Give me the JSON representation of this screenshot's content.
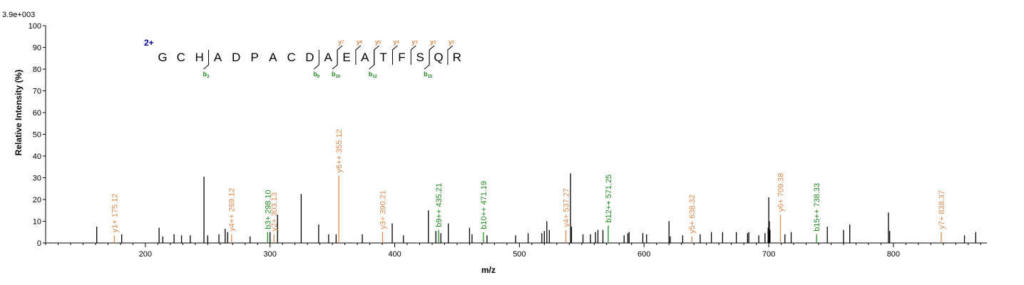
{
  "chart_data": {
    "type": "bar",
    "max_intensity_label": "3.9e+003",
    "ylabel": "Relative   Intensity (%)",
    "xlabel": "m/z",
    "xlim": [
      120,
      875
    ],
    "ylim": [
      0,
      100
    ],
    "x_ticks": [
      200,
      300,
      400,
      500,
      600,
      700,
      800
    ],
    "y_ticks": [
      0,
      10,
      20,
      30,
      40,
      50,
      60,
      70,
      80,
      90,
      100
    ],
    "colors": {
      "unmatched": "#000000",
      "y_ion": "#e08a50",
      "b_ion": "#228b22",
      "charge": "#00008b"
    },
    "peaks": [
      {
        "mz": 161.0,
        "intensity": 7.5,
        "type": "unmatched"
      },
      {
        "mz": 175.12,
        "intensity": 3.5,
        "type": "y",
        "label": "y1+ 175.12"
      },
      {
        "mz": 181.0,
        "intensity": 4.0,
        "type": "unmatched"
      },
      {
        "mz": 211.0,
        "intensity": 7.0,
        "type": "unmatched"
      },
      {
        "mz": 214.0,
        "intensity": 3.0,
        "type": "unmatched"
      },
      {
        "mz": 223.0,
        "intensity": 4.0,
        "type": "unmatched"
      },
      {
        "mz": 229.0,
        "intensity": 3.5,
        "type": "unmatched"
      },
      {
        "mz": 236.0,
        "intensity": 3.5,
        "type": "unmatched"
      },
      {
        "mz": 247.0,
        "intensity": 30.5,
        "type": "unmatched"
      },
      {
        "mz": 250.0,
        "intensity": 3.5,
        "type": "unmatched"
      },
      {
        "mz": 259.0,
        "intensity": 4.0,
        "type": "unmatched"
      },
      {
        "mz": 264.0,
        "intensity": 6.5,
        "type": "unmatched"
      },
      {
        "mz": 266.0,
        "intensity": 5.0,
        "type": "unmatched"
      },
      {
        "mz": 269.12,
        "intensity": 4.0,
        "type": "y",
        "label": "y4++ 269.12"
      },
      {
        "mz": 284.0,
        "intensity": 3.0,
        "type": "unmatched"
      },
      {
        "mz": 298.1,
        "intensity": 5.0,
        "type": "b",
        "label": "b3+ 298.10"
      },
      {
        "mz": 300.0,
        "intensity": 5.0,
        "type": "unmatched"
      },
      {
        "mz": 303.13,
        "intensity": 4.0,
        "type": "y",
        "label": "y2+ 303.13"
      },
      {
        "mz": 306.0,
        "intensity": 13.0,
        "type": "unmatched"
      },
      {
        "mz": 325.0,
        "intensity": 22.5,
        "type": "unmatched"
      },
      {
        "mz": 339.0,
        "intensity": 8.5,
        "type": "unmatched"
      },
      {
        "mz": 347.0,
        "intensity": 4.0,
        "type": "unmatched"
      },
      {
        "mz": 353.0,
        "intensity": 4.0,
        "type": "unmatched"
      },
      {
        "mz": 355.12,
        "intensity": 31.0,
        "type": "y",
        "label": "y6++ 355.12"
      },
      {
        "mz": 374.0,
        "intensity": 4.0,
        "type": "unmatched"
      },
      {
        "mz": 390.21,
        "intensity": 5.0,
        "type": "y",
        "label": "y3+ 390.21"
      },
      {
        "mz": 398.0,
        "intensity": 9.0,
        "type": "unmatched"
      },
      {
        "mz": 407.0,
        "intensity": 3.5,
        "type": "unmatched"
      },
      {
        "mz": 427.0,
        "intensity": 15.0,
        "type": "unmatched"
      },
      {
        "mz": 433.0,
        "intensity": 5.5,
        "type": "unmatched"
      },
      {
        "mz": 435.21,
        "intensity": 6.0,
        "type": "b",
        "label": "b9++ 435.21"
      },
      {
        "mz": 437.0,
        "intensity": 4.5,
        "type": "unmatched"
      },
      {
        "mz": 443.0,
        "intensity": 9.0,
        "type": "unmatched"
      },
      {
        "mz": 460.0,
        "intensity": 7.0,
        "type": "unmatched"
      },
      {
        "mz": 462.0,
        "intensity": 4.0,
        "type": "unmatched"
      },
      {
        "mz": 471.19,
        "intensity": 5.0,
        "type": "b",
        "label": "b10++ 471.19"
      },
      {
        "mz": 474.0,
        "intensity": 3.5,
        "type": "unmatched"
      },
      {
        "mz": 497.0,
        "intensity": 3.5,
        "type": "unmatched"
      },
      {
        "mz": 507.0,
        "intensity": 4.5,
        "type": "unmatched"
      },
      {
        "mz": 518.0,
        "intensity": 4.5,
        "type": "unmatched"
      },
      {
        "mz": 520.0,
        "intensity": 5.5,
        "type": "unmatched"
      },
      {
        "mz": 522.0,
        "intensity": 10.0,
        "type": "unmatched"
      },
      {
        "mz": 524.0,
        "intensity": 6.0,
        "type": "unmatched"
      },
      {
        "mz": 537.27,
        "intensity": 6.0,
        "type": "y",
        "label": "y4+ 537.27"
      },
      {
        "mz": 541.0,
        "intensity": 32.0,
        "type": "unmatched"
      },
      {
        "mz": 541.8,
        "intensity": 7.5,
        "type": "unmatched"
      },
      {
        "mz": 551.0,
        "intensity": 4.0,
        "type": "unmatched"
      },
      {
        "mz": 557.0,
        "intensity": 4.0,
        "type": "unmatched"
      },
      {
        "mz": 561.0,
        "intensity": 5.0,
        "type": "unmatched"
      },
      {
        "mz": 563.0,
        "intensity": 6.0,
        "type": "unmatched"
      },
      {
        "mz": 567.0,
        "intensity": 6.0,
        "type": "unmatched"
      },
      {
        "mz": 571.25,
        "intensity": 8.0,
        "type": "b",
        "label": "b12++ 571.25"
      },
      {
        "mz": 584.0,
        "intensity": 3.5,
        "type": "unmatched"
      },
      {
        "mz": 587.0,
        "intensity": 4.5,
        "type": "unmatched"
      },
      {
        "mz": 588.0,
        "intensity": 5.0,
        "type": "unmatched"
      },
      {
        "mz": 599.0,
        "intensity": 4.5,
        "type": "unmatched"
      },
      {
        "mz": 602.0,
        "intensity": 4.0,
        "type": "unmatched"
      },
      {
        "mz": 620.0,
        "intensity": 10.0,
        "type": "unmatched"
      },
      {
        "mz": 621.0,
        "intensity": 3.0,
        "type": "unmatched"
      },
      {
        "mz": 631.0,
        "intensity": 3.5,
        "type": "unmatched"
      },
      {
        "mz": 638.32,
        "intensity": 3.0,
        "type": "y",
        "label": "y5+ 638.32"
      },
      {
        "mz": 645.0,
        "intensity": 4.0,
        "type": "unmatched"
      },
      {
        "mz": 654.0,
        "intensity": 5.0,
        "type": "unmatched"
      },
      {
        "mz": 663.0,
        "intensity": 5.0,
        "type": "unmatched"
      },
      {
        "mz": 674.0,
        "intensity": 5.0,
        "type": "unmatched"
      },
      {
        "mz": 683.0,
        "intensity": 4.5,
        "type": "unmatched"
      },
      {
        "mz": 684.0,
        "intensity": 5.0,
        "type": "unmatched"
      },
      {
        "mz": 692.0,
        "intensity": 3.5,
        "type": "unmatched"
      },
      {
        "mz": 697.0,
        "intensity": 4.5,
        "type": "unmatched"
      },
      {
        "mz": 699.5,
        "intensity": 7.0,
        "type": "unmatched"
      },
      {
        "mz": 700.0,
        "intensity": 21.0,
        "type": "unmatched"
      },
      {
        "mz": 700.5,
        "intensity": 10.0,
        "type": "unmatched"
      },
      {
        "mz": 701.0,
        "intensity": 6.0,
        "type": "unmatched"
      },
      {
        "mz": 709.38,
        "intensity": 13.0,
        "type": "y",
        "label": "y6+ 709.38"
      },
      {
        "mz": 713.0,
        "intensity": 4.0,
        "type": "unmatched"
      },
      {
        "mz": 718.0,
        "intensity": 5.0,
        "type": "unmatched"
      },
      {
        "mz": 738.33,
        "intensity": 4.0,
        "type": "b",
        "label": "b15++ 738.33"
      },
      {
        "mz": 747.0,
        "intensity": 7.5,
        "type": "unmatched"
      },
      {
        "mz": 760.0,
        "intensity": 6.0,
        "type": "unmatched"
      },
      {
        "mz": 765.0,
        "intensity": 8.5,
        "type": "unmatched"
      },
      {
        "mz": 796.0,
        "intensity": 14.0,
        "type": "unmatched"
      },
      {
        "mz": 797.0,
        "intensity": 5.5,
        "type": "unmatched"
      },
      {
        "mz": 838.37,
        "intensity": 5.0,
        "type": "y",
        "label": "y7+ 838.37"
      },
      {
        "mz": 857.0,
        "intensity": 3.5,
        "type": "unmatched"
      },
      {
        "mz": 866.0,
        "intensity": 5.0,
        "type": "unmatched"
      }
    ],
    "sequence": {
      "charge": "2+",
      "letters": [
        "G",
        "C",
        "H",
        "A",
        "D",
        "P",
        "A",
        "C",
        "D",
        "A",
        "E",
        "A",
        "T",
        "F",
        "S",
        "Q",
        "R"
      ],
      "b_ions": [
        {
          "n": 3,
          "label": "b",
          "sub": "3"
        },
        {
          "n": 9,
          "label": "b",
          "sub": "9"
        },
        {
          "n": 10,
          "label": "b",
          "sub": "10"
        },
        {
          "n": 12,
          "label": "b",
          "sub": "12"
        },
        {
          "n": 15,
          "label": "b",
          "sub": "15"
        }
      ],
      "y_ions": [
        {
          "n": 7,
          "label": "y",
          "sub": "7"
        },
        {
          "n": 6,
          "label": "y",
          "sub": "6"
        },
        {
          "n": 5,
          "label": "y",
          "sub": "5"
        },
        {
          "n": 4,
          "label": "y",
          "sub": "4"
        },
        {
          "n": 3,
          "label": "y",
          "sub": "3"
        },
        {
          "n": 2,
          "label": "y",
          "sub": "2"
        },
        {
          "n": 1,
          "label": "y",
          "sub": "1"
        }
      ]
    }
  }
}
